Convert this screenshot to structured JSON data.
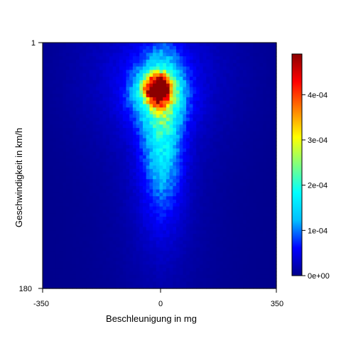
{
  "chart_data": {
    "type": "heatmap",
    "xlabel": "Beschleunigung in mg",
    "ylabel": "Geschwindigkeit in km/h",
    "xlim": [
      -350,
      350
    ],
    "ylim": [
      1,
      180
    ],
    "x_ticks": [
      "-350",
      "0",
      "350"
    ],
    "y_ticks": [
      "1",
      "180"
    ],
    "colorbar": {
      "min": 0,
      "max": 0.00049,
      "ticks": [
        {
          "value": 0,
          "label": "0e+00"
        },
        {
          "value": 0.0001,
          "label": "1e-04"
        },
        {
          "value": 0.0002,
          "label": "2e-04"
        },
        {
          "value": 0.0003,
          "label": "3e-04"
        },
        {
          "value": 0.0004,
          "label": "4e-04"
        }
      ],
      "colormap": [
        "#00008b",
        "#0000ff",
        "#00bfff",
        "#00ffff",
        "#7fff7f",
        "#ffff00",
        "#ff7f00",
        "#ff0000",
        "#8b0000"
      ]
    },
    "density_components": [
      {
        "x": -5,
        "y": 35,
        "sx": 28,
        "sy": 7,
        "amp": 0.00044
      },
      {
        "x": -5,
        "y": 38,
        "sx": 60,
        "sy": 16,
        "amp": 0.00012
      },
      {
        "x": 10,
        "y": 60,
        "sx": 35,
        "sy": 35,
        "amp": 0.00011
      },
      {
        "x": 5,
        "y": 85,
        "sx": 55,
        "sy": 45,
        "amp": 5e-05
      },
      {
        "x": -10,
        "y": 20,
        "sx": 170,
        "sy": 40,
        "amp": 4e-05
      },
      {
        "x": 0,
        "y": 120,
        "sx": 140,
        "sy": 70,
        "amp": 1.5e-05
      }
    ]
  }
}
